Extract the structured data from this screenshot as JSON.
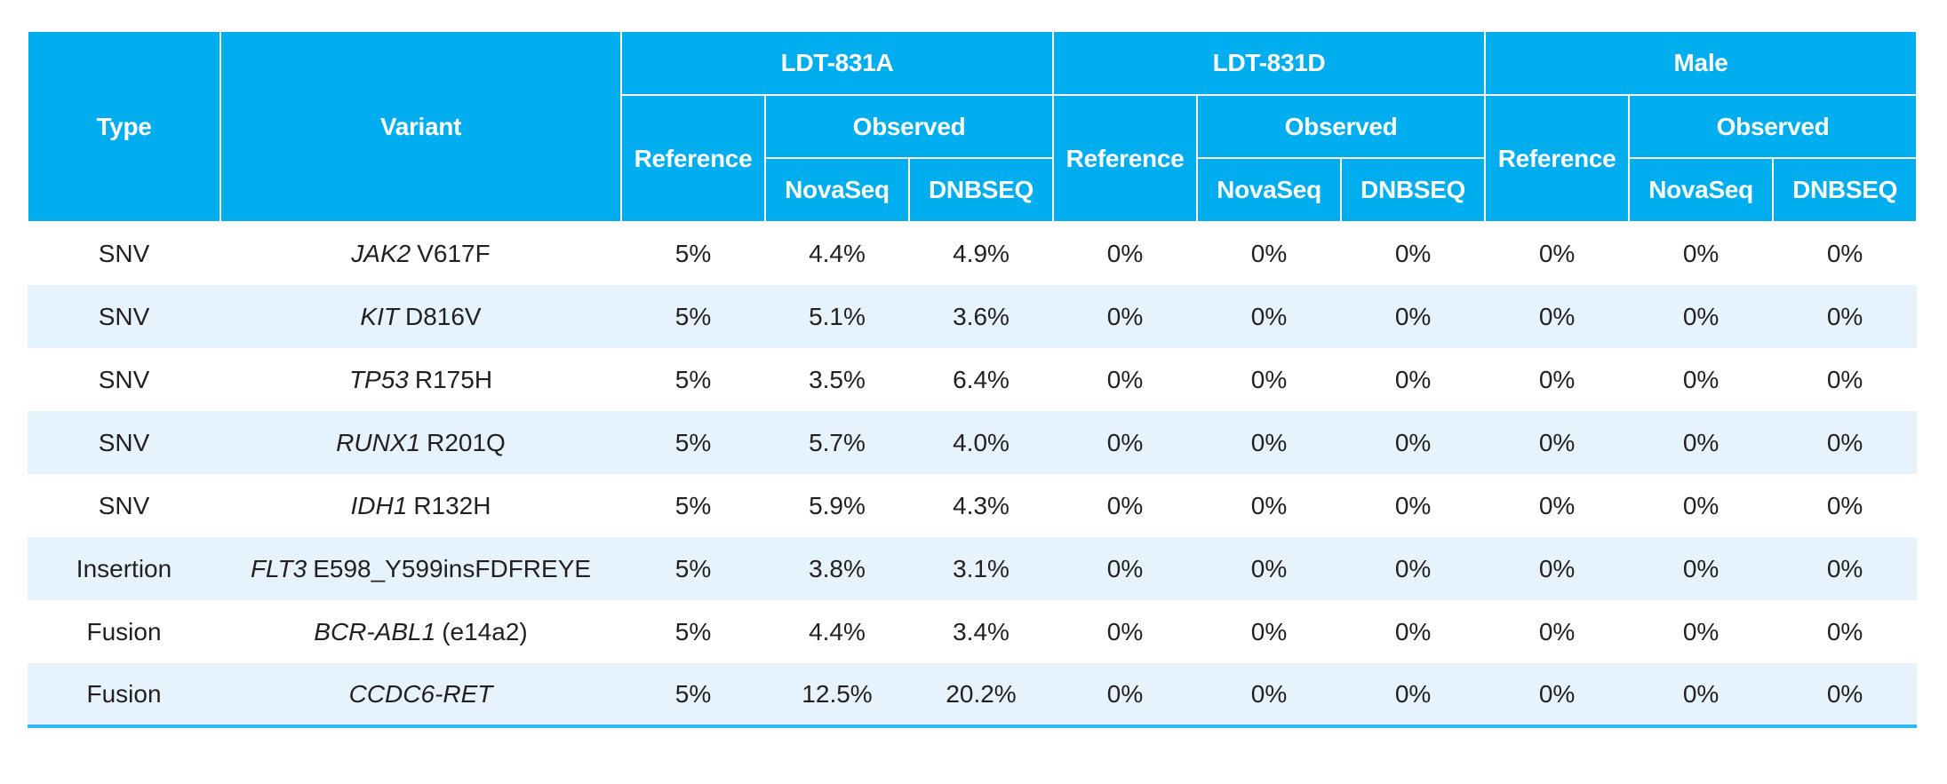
{
  "colors": {
    "header_bg": "#00AEEF",
    "header_text": "#FFFFFF",
    "row_bg": "#FFFFFF",
    "row_alt_bg": "#E7F3FC",
    "body_text": "#231F20",
    "bottom_rule": "#31B7F0"
  },
  "table": {
    "header": {
      "type_label": "Type",
      "variant_label": "Variant",
      "groups": [
        {
          "label": "LDT-831A"
        },
        {
          "label": "LDT-831D"
        },
        {
          "label": "Male"
        }
      ],
      "reference_label": "Reference",
      "observed_label": "Observed",
      "platform_labels": [
        "NovaSeq",
        "DNBSEQ"
      ]
    },
    "rows": [
      {
        "type": "SNV",
        "gene": "JAK2",
        "suffix": "V617F",
        "values": [
          "5%",
          "4.4%",
          "4.9%",
          "0%",
          "0%",
          "0%",
          "0%",
          "0%",
          "0%"
        ]
      },
      {
        "type": "SNV",
        "gene": "KIT",
        "suffix": "D816V",
        "values": [
          "5%",
          "5.1%",
          "3.6%",
          "0%",
          "0%",
          "0%",
          "0%",
          "0%",
          "0%"
        ]
      },
      {
        "type": "SNV",
        "gene": "TP53",
        "suffix": "R175H",
        "values": [
          "5%",
          "3.5%",
          "6.4%",
          "0%",
          "0%",
          "0%",
          "0%",
          "0%",
          "0%"
        ]
      },
      {
        "type": "SNV",
        "gene": "RUNX1",
        "suffix": "R201Q",
        "values": [
          "5%",
          "5.7%",
          "4.0%",
          "0%",
          "0%",
          "0%",
          "0%",
          "0%",
          "0%"
        ]
      },
      {
        "type": "SNV",
        "gene": "IDH1",
        "suffix": "R132H",
        "values": [
          "5%",
          "5.9%",
          "4.3%",
          "0%",
          "0%",
          "0%",
          "0%",
          "0%",
          "0%"
        ]
      },
      {
        "type": "Insertion",
        "gene": "FLT3",
        "suffix": "E598_Y599insFDFREYE",
        "values": [
          "5%",
          "3.8%",
          "3.1%",
          "0%",
          "0%",
          "0%",
          "0%",
          "0%",
          "0%"
        ]
      },
      {
        "type": "Fusion",
        "gene": "BCR-ABL1",
        "suffix": "(e14a2)",
        "values": [
          "5%",
          "4.4%",
          "3.4%",
          "0%",
          "0%",
          "0%",
          "0%",
          "0%",
          "0%"
        ]
      },
      {
        "type": "Fusion",
        "gene": "CCDC6-RET",
        "suffix": "",
        "values": [
          "5%",
          "12.5%",
          "20.2%",
          "0%",
          "0%",
          "0%",
          "0%",
          "0%",
          "0%"
        ]
      }
    ]
  }
}
